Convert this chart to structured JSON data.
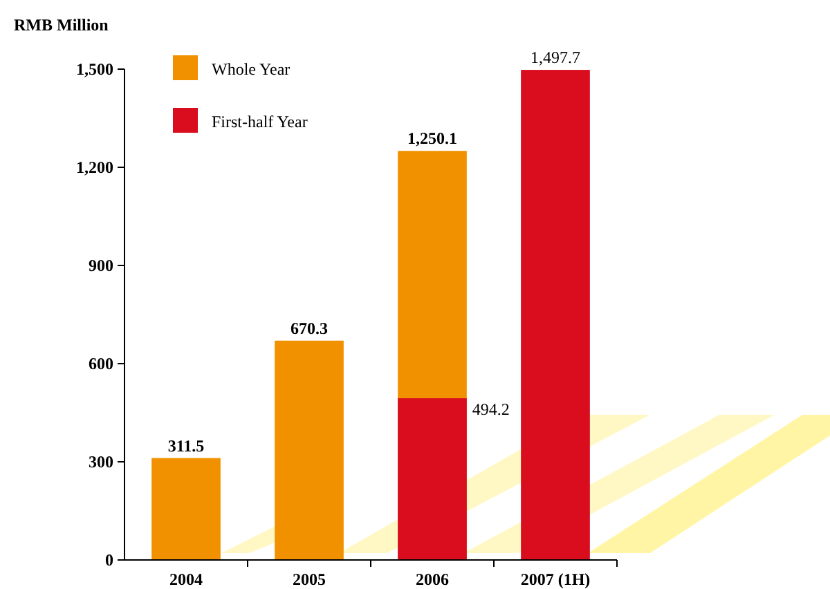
{
  "chart_data": {
    "type": "bar",
    "ylabel": "RMB Million",
    "categories": [
      "2004",
      "2005",
      "2006",
      "2007 (1H)"
    ],
    "series": [
      {
        "name": "Whole Year",
        "color": "#f29100",
        "values": [
          311.5,
          670.3,
          1250.1,
          null
        ],
        "value_labels": [
          "311.5",
          "670.3",
          "1,250.1",
          null
        ]
      },
      {
        "name": "First-half Year",
        "color": "#d90d1e",
        "values": [
          null,
          null,
          494.2,
          1497.7
        ],
        "value_labels": [
          null,
          null,
          "494.2",
          "1,497.7"
        ]
      }
    ],
    "ylim": [
      0,
      1500
    ],
    "yticks": [
      0,
      300,
      600,
      900,
      {
        "value": 1200,
        "label": "1,200"
      },
      {
        "value": 1500,
        "label": "1,500"
      }
    ],
    "grid": false,
    "legend": "top left"
  }
}
